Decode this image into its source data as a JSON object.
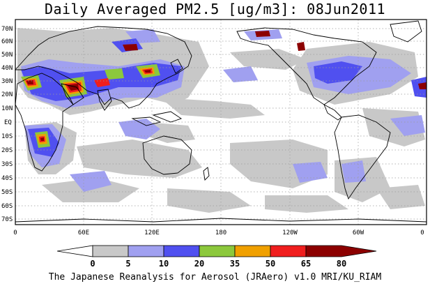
{
  "title": "Daily Averaged PM2.5 [ug/m3]: 08Jun2011",
  "credit": "The Japanese Reanalysis for Aerosol (JRAero) v1.0 MRI/KU_RIAM",
  "lat_ticks": [
    "70N",
    "60N",
    "50N",
    "40N",
    "30N",
    "20N",
    "10N",
    "EQ",
    "10S",
    "20S",
    "30S",
    "40S",
    "50S",
    "60S",
    "70S"
  ],
  "lon_ticks": [
    "0",
    "60E",
    "120E",
    "180",
    "120W",
    "60W",
    "0"
  ],
  "colorbar": {
    "levels": [
      "0",
      "5",
      "10",
      "20",
      "35",
      "50",
      "65",
      "80"
    ],
    "colors": [
      "#ffffff",
      "#c8c8c8",
      "#a0a0f0",
      "#5050f0",
      "#8cc83c",
      "#f0a000",
      "#f01e1e",
      "#8c0000"
    ]
  },
  "map_colors": {
    "land_outline": "#000000",
    "grid": "#9a9a9a"
  }
}
